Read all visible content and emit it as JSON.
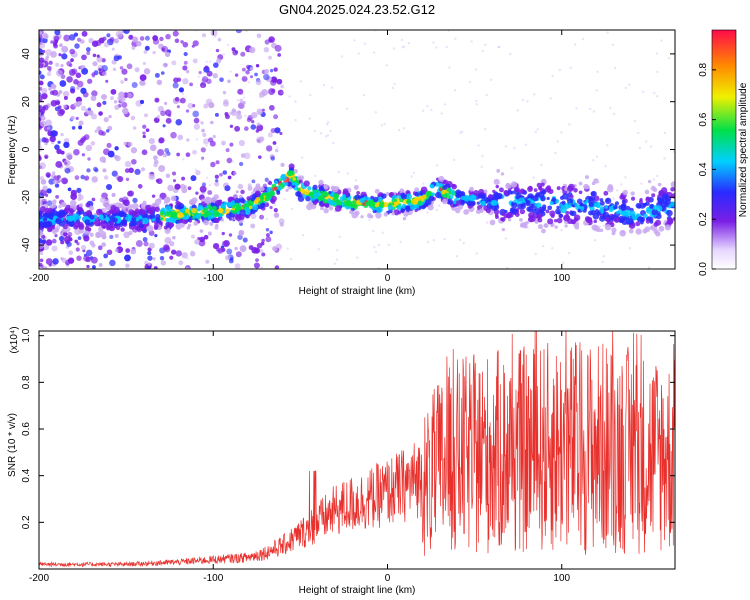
{
  "title": "GN04.2025.024.23.52.G12",
  "colors": {
    "snr_line": "#e8302c",
    "point_low": "#c8a8f0",
    "point_mid": "#7a1fe6",
    "point_high": "#00c8ff",
    "peak": "#ff2a2a"
  },
  "colorbar": {
    "label": "Normalized spectral amplitude",
    "ticks": [
      "0.0",
      "0.2",
      "0.4",
      "0.6",
      "0.8"
    ],
    "range": [
      0,
      0.96
    ]
  },
  "chart_data": [
    {
      "type": "heatmap",
      "name": "spectrogram",
      "xlabel": "Height of straight line (km)",
      "ylabel": "Frequency (Hz)",
      "xlim": [
        -200,
        165
      ],
      "ylim": [
        -50,
        50
      ],
      "xticks": [
        -200,
        -100,
        0,
        100
      ],
      "yticks": [
        40,
        20,
        0,
        -20,
        -40
      ],
      "ridge": {
        "x": [
          -140,
          -120,
          -100,
          -80,
          -70,
          -60,
          -55,
          -50,
          -40,
          -30,
          -20,
          -10,
          0,
          10,
          20,
          28,
          40,
          60,
          80,
          100,
          120,
          140,
          160
        ],
        "y": [
          -29,
          -27,
          -26,
          -24,
          -20,
          -13,
          -11,
          -17,
          -19,
          -21,
          -22,
          -23,
          -23,
          -22,
          -21,
          -16,
          -20,
          -22,
          -22,
          -23,
          -24,
          -27,
          -24
        ]
      }
    },
    {
      "type": "line",
      "name": "snr",
      "xlabel": "Height of straight line (km)",
      "ylabel": "SNR (10 * v/v)",
      "y_multiplier": "(x10⁴)",
      "xlim": [
        -200,
        165
      ],
      "ylim": [
        0,
        1.02
      ],
      "xticks": [
        -200,
        -100,
        0,
        100
      ],
      "yticks": [
        0.2,
        0.4,
        0.6,
        0.8,
        1.0
      ],
      "envelope": {
        "x": [
          -200,
          -150,
          -120,
          -100,
          -80,
          -70,
          -60,
          -50,
          -40,
          -30,
          -20,
          -10,
          0,
          10,
          20,
          25,
          30,
          40,
          60,
          80,
          100,
          120,
          140,
          165
        ],
        "y": [
          0.02,
          0.02,
          0.03,
          0.04,
          0.05,
          0.07,
          0.1,
          0.15,
          0.2,
          0.25,
          0.28,
          0.3,
          0.33,
          0.36,
          0.4,
          0.45,
          0.5,
          0.55,
          0.57,
          0.58,
          0.6,
          0.6,
          0.58,
          0.55
        ]
      }
    }
  ]
}
